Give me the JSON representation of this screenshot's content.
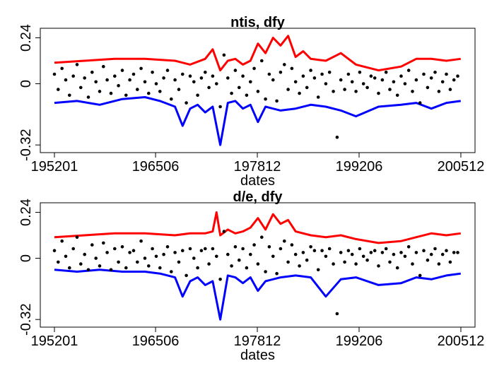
{
  "colors": {
    "upper": "#ff0000",
    "lower": "#0000ff",
    "points": "#000000",
    "axis": "#000000"
  },
  "chart_data": [
    {
      "type": "scatter",
      "title": "ntis, dfy",
      "xlabel": "dates",
      "ylabel": "",
      "x_tick_labels": [
        "195201",
        "196506",
        "197812",
        "199206",
        "200512"
      ],
      "y_tick_labels": [
        "-0.32",
        "0",
        "0.24"
      ],
      "y_ticks": [
        -0.32,
        0,
        0.24
      ],
      "ylim": [
        -0.36,
        0.29
      ],
      "xlim": [
        1952.0,
        2005.92
      ],
      "grid": false,
      "series": [
        {
          "role": "upper-band",
          "color": "#ff0000",
          "kind": "line",
          "x": [
            1952,
            1956,
            1960,
            1964,
            1968,
            1970,
            1972,
            1973,
            1974,
            1975,
            1976,
            1977,
            1978,
            1979,
            1980,
            1981,
            1982,
            1983,
            1984,
            1985,
            1986,
            1988,
            1990,
            1992,
            1995,
            1998,
            2000,
            2002,
            2004,
            2005.9
          ],
          "y": [
            0.11,
            0.12,
            0.13,
            0.13,
            0.12,
            0.1,
            0.13,
            0.18,
            0.07,
            0.12,
            0.13,
            0.1,
            0.12,
            0.21,
            0.16,
            0.24,
            0.2,
            0.25,
            0.14,
            0.17,
            0.13,
            0.12,
            0.16,
            0.1,
            0.07,
            0.09,
            0.13,
            0.13,
            0.12,
            0.13
          ]
        },
        {
          "role": "lower-band",
          "color": "#0000ff",
          "kind": "line",
          "x": [
            1952,
            1955,
            1958,
            1961,
            1964,
            1966,
            1968,
            1969,
            1970,
            1971,
            1972,
            1973,
            1974,
            1975,
            1976,
            1977,
            1978,
            1979,
            1980,
            1982,
            1984,
            1986,
            1988,
            1990,
            1992,
            1995,
            1998,
            2000,
            2002,
            2004,
            2005.9
          ],
          "y": [
            -0.1,
            -0.09,
            -0.11,
            -0.08,
            -0.07,
            -0.09,
            -0.12,
            -0.22,
            -0.13,
            -0.11,
            -0.15,
            -0.12,
            -0.32,
            -0.1,
            -0.09,
            -0.13,
            -0.11,
            -0.2,
            -0.12,
            -0.14,
            -0.13,
            -0.11,
            -0.12,
            -0.14,
            -0.17,
            -0.12,
            -0.11,
            -0.1,
            -0.13,
            -0.1,
            -0.09
          ]
        },
        {
          "role": "points",
          "color": "#000000",
          "kind": "scatter",
          "x": [
            1952,
            1952.5,
            1953,
            1953.5,
            1954,
            1954.5,
            1955,
            1955.5,
            1956,
            1956.5,
            1957,
            1957.5,
            1958,
            1958.5,
            1959,
            1959.5,
            1960,
            1960.5,
            1961,
            1961.5,
            1962,
            1962.5,
            1963,
            1963.5,
            1964,
            1964.5,
            1965,
            1965.5,
            1966,
            1966.5,
            1967,
            1967.5,
            1968,
            1968.5,
            1969,
            1969.5,
            1970,
            1970.5,
            1971,
            1971.5,
            1972,
            1972.5,
            1973,
            1973.5,
            1974,
            1974.5,
            1975,
            1975.5,
            1976,
            1976.5,
            1977,
            1977.5,
            1978,
            1978.5,
            1979,
            1979.5,
            1980,
            1980.5,
            1981,
            1981.5,
            1982,
            1982.5,
            1983,
            1983.5,
            1984,
            1984.5,
            1985,
            1985.5,
            1986,
            1986.5,
            1987,
            1987.5,
            1988,
            1988.5,
            1989,
            1989.5,
            1990,
            1990.5,
            1991,
            1991.5,
            1992,
            1992.5,
            1993,
            1993.5,
            1994,
            1994.5,
            1995,
            1995.5,
            1996,
            1996.5,
            1997,
            1997.5,
            1998,
            1998.5,
            1999,
            1999.5,
            2000,
            2000.5,
            2001,
            2001.5,
            2002,
            2002.5,
            2003,
            2003.5,
            2004,
            2004.5,
            2005,
            2005.5
          ],
          "y": [
            0.05,
            -0.03,
            0.08,
            0.02,
            -0.06,
            0.04,
            0.1,
            -0.02,
            0.03,
            -0.07,
            0.06,
            0.01,
            -0.04,
            0.09,
            0.02,
            -0.05,
            0.04,
            -0.01,
            0.07,
            -0.06,
            0.02,
            0.05,
            -0.03,
            0.08,
            0.01,
            -0.05,
            0.06,
            0.0,
            -0.04,
            0.03,
            0.07,
            -0.08,
            0.02,
            -0.03,
            0.05,
            -0.1,
            0.04,
            0.01,
            -0.06,
            0.03,
            0.06,
            -0.02,
            0.04,
            0.0,
            -0.12,
            0.15,
            0.03,
            -0.05,
            0.07,
            -0.02,
            0.04,
            -0.06,
            0.01,
            0.08,
            -0.04,
            0.12,
            -0.08,
            0.05,
            0.02,
            -0.09,
            0.06,
            0.1,
            -0.03,
            0.08,
            0.01,
            -0.05,
            0.04,
            -0.02,
            0.07,
            0.03,
            -0.07,
            0.05,
            0.0,
            0.06,
            -0.04,
            -0.28,
            0.02,
            -0.03,
            0.05,
            0.01,
            -0.04,
            0.06,
            0.0,
            -0.02,
            0.04,
            0.03,
            -0.05,
            0.02,
            0.06,
            -0.03,
            0.01,
            -0.06,
            0.04,
            0.0,
            0.07,
            -0.04,
            0.02,
            -0.1,
            0.05,
            -0.02,
            0.03,
            0.06,
            -0.04,
            0.01,
            0.05,
            -0.03,
            0.02,
            0.04
          ]
        }
      ]
    },
    {
      "type": "scatter",
      "title": "d/e, dfy",
      "xlabel": "dates",
      "ylabel": "",
      "x_tick_labels": [
        "195201",
        "196506",
        "197812",
        "199206",
        "200512"
      ],
      "y_tick_labels": [
        "-0.32",
        "0",
        "0.24"
      ],
      "y_ticks": [
        -0.32,
        0,
        0.24
      ],
      "ylim": [
        -0.36,
        0.29
      ],
      "xlim": [
        1952.0,
        2005.92
      ],
      "grid": false,
      "series": [
        {
          "role": "upper-band",
          "color": "#ff0000",
          "kind": "line",
          "x": [
            1952,
            1956,
            1960,
            1964,
            1968,
            1970,
            1972,
            1973,
            1973.5,
            1974,
            1975,
            1976,
            1977,
            1978,
            1979,
            1980,
            1981,
            1982,
            1983,
            1984,
            1986,
            1988,
            1990,
            1992,
            1995,
            1998,
            2000,
            2002,
            2004,
            2005.9
          ],
          "y": [
            0.11,
            0.12,
            0.13,
            0.13,
            0.12,
            0.13,
            0.13,
            0.14,
            0.24,
            0.12,
            0.15,
            0.13,
            0.14,
            0.16,
            0.21,
            0.15,
            0.23,
            0.18,
            0.2,
            0.14,
            0.12,
            0.11,
            0.12,
            0.1,
            0.08,
            0.09,
            0.11,
            0.13,
            0.12,
            0.13
          ]
        },
        {
          "role": "lower-band",
          "color": "#0000ff",
          "kind": "line",
          "x": [
            1952,
            1955,
            1958,
            1961,
            1964,
            1966,
            1968,
            1969,
            1970,
            1971,
            1972,
            1973,
            1974,
            1975,
            1976,
            1977,
            1978,
            1979,
            1980,
            1982,
            1984,
            1986,
            1988,
            1990,
            1992,
            1995,
            1998,
            2000,
            2002,
            2004,
            2005.9
          ],
          "y": [
            -0.06,
            -0.07,
            -0.06,
            -0.07,
            -0.07,
            -0.08,
            -0.1,
            -0.2,
            -0.12,
            -0.1,
            -0.14,
            -0.12,
            -0.32,
            -0.09,
            -0.1,
            -0.13,
            -0.1,
            -0.17,
            -0.12,
            -0.1,
            -0.09,
            -0.1,
            -0.2,
            -0.11,
            -0.1,
            -0.14,
            -0.13,
            -0.1,
            -0.11,
            -0.09,
            -0.08
          ]
        },
        {
          "role": "points",
          "color": "#000000",
          "kind": "scatter",
          "x": [
            1952,
            1952.5,
            1953,
            1953.5,
            1954,
            1954.5,
            1955,
            1955.5,
            1956,
            1956.5,
            1957,
            1957.5,
            1958,
            1958.5,
            1959,
            1959.5,
            1960,
            1960.5,
            1961,
            1961.5,
            1962,
            1962.5,
            1963,
            1963.5,
            1964,
            1964.5,
            1965,
            1965.5,
            1966,
            1966.5,
            1967,
            1967.5,
            1968,
            1968.5,
            1969,
            1969.5,
            1970,
            1970.5,
            1971,
            1971.5,
            1972,
            1972.5,
            1973,
            1973.5,
            1974,
            1974.5,
            1975,
            1975.5,
            1976,
            1976.5,
            1977,
            1977.5,
            1978,
            1978.5,
            1979,
            1979.5,
            1980,
            1980.5,
            1981,
            1981.5,
            1982,
            1982.5,
            1983,
            1983.5,
            1984,
            1984.5,
            1985,
            1985.5,
            1986,
            1986.5,
            1987,
            1987.5,
            1988,
            1988.5,
            1989,
            1989.5,
            1990,
            1990.5,
            1991,
            1991.5,
            1992,
            1992.5,
            1993,
            1993.5,
            1994,
            1994.5,
            1995,
            1995.5,
            1996,
            1996.5,
            1997,
            1997.5,
            1998,
            1998.5,
            1999,
            1999.5,
            2000,
            2000.5,
            2001,
            2001.5,
            2002,
            2002.5,
            2003,
            2003.5,
            2004,
            2004.5,
            2005,
            2005.5
          ],
          "y": [
            0.04,
            -0.02,
            0.09,
            0.01,
            -0.05,
            0.05,
            0.11,
            -0.03,
            0.02,
            -0.06,
            0.07,
            0.0,
            -0.04,
            0.08,
            0.03,
            -0.06,
            0.05,
            -0.02,
            0.06,
            -0.05,
            0.03,
            0.04,
            -0.02,
            0.09,
            0.0,
            -0.04,
            0.05,
            0.01,
            -0.05,
            0.02,
            0.06,
            -0.07,
            0.03,
            -0.02,
            0.04,
            -0.09,
            0.05,
            0.0,
            -0.05,
            0.04,
            0.05,
            -0.03,
            0.05,
            0.01,
            -0.11,
            0.14,
            0.02,
            -0.04,
            0.06,
            -0.01,
            0.05,
            -0.05,
            0.02,
            0.07,
            -0.03,
            0.11,
            -0.07,
            0.06,
            0.01,
            -0.08,
            0.05,
            0.09,
            -0.02,
            0.07,
            0.02,
            -0.04,
            0.03,
            -0.01,
            0.06,
            0.04,
            -0.06,
            0.04,
            0.01,
            0.05,
            -0.03,
            -0.29,
            0.03,
            -0.02,
            0.04,
            0.02,
            -0.03,
            0.05,
            0.01,
            -0.01,
            0.03,
            0.04,
            -0.04,
            0.03,
            0.05,
            -0.02,
            0.02,
            -0.05,
            0.03,
            0.01,
            0.06,
            -0.03,
            0.03,
            -0.09,
            0.04,
            -0.01,
            0.02,
            0.05,
            -0.03,
            0.02,
            0.04,
            -0.02,
            0.03,
            0.03
          ]
        }
      ]
    }
  ]
}
